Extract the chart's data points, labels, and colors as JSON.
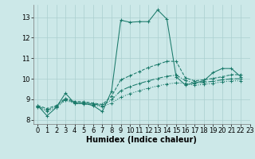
{
  "title": "",
  "xlabel": "Humidex (Indice chaleur)",
  "background_color": "#cce8e8",
  "grid_color": "#aacfcf",
  "line_color": "#1a7a6a",
  "xlim": [
    -0.5,
    23
  ],
  "ylim": [
    7.8,
    13.6
  ],
  "yticks": [
    8,
    9,
    10,
    11,
    12,
    13
  ],
  "xticks": [
    0,
    1,
    2,
    3,
    4,
    5,
    6,
    7,
    8,
    9,
    10,
    11,
    12,
    13,
    14,
    15,
    16,
    17,
    18,
    19,
    20,
    21,
    22,
    23
  ],
  "series": [
    [
      8.7,
      8.2,
      8.6,
      9.3,
      8.8,
      8.8,
      8.7,
      8.4,
      9.4,
      12.85,
      12.75,
      12.78,
      12.78,
      13.35,
      12.9,
      10.1,
      9.7,
      9.8,
      9.9,
      10.3,
      10.5,
      10.5,
      10.1
    ],
    [
      8.7,
      8.55,
      8.7,
      9.05,
      8.9,
      8.88,
      8.82,
      8.75,
      9.15,
      9.95,
      10.15,
      10.35,
      10.55,
      10.7,
      10.85,
      10.85,
      10.05,
      9.9,
      9.95,
      10.02,
      10.1,
      10.2,
      10.2
    ],
    [
      8.65,
      8.48,
      8.65,
      9.0,
      8.85,
      8.83,
      8.77,
      8.7,
      8.98,
      9.42,
      9.62,
      9.77,
      9.9,
      10.02,
      10.12,
      10.18,
      9.92,
      9.78,
      9.83,
      9.88,
      9.95,
      10.0,
      10.0
    ],
    [
      8.6,
      8.42,
      8.6,
      8.95,
      8.8,
      8.78,
      8.72,
      8.65,
      8.82,
      9.1,
      9.28,
      9.42,
      9.55,
      9.65,
      9.75,
      9.8,
      9.78,
      9.68,
      9.73,
      9.78,
      9.85,
      9.9,
      9.9
    ]
  ],
  "line_styles": [
    "-",
    "--",
    "-.",
    ":"
  ],
  "xlabel_fontsize": 7,
  "tick_fontsize": 6
}
